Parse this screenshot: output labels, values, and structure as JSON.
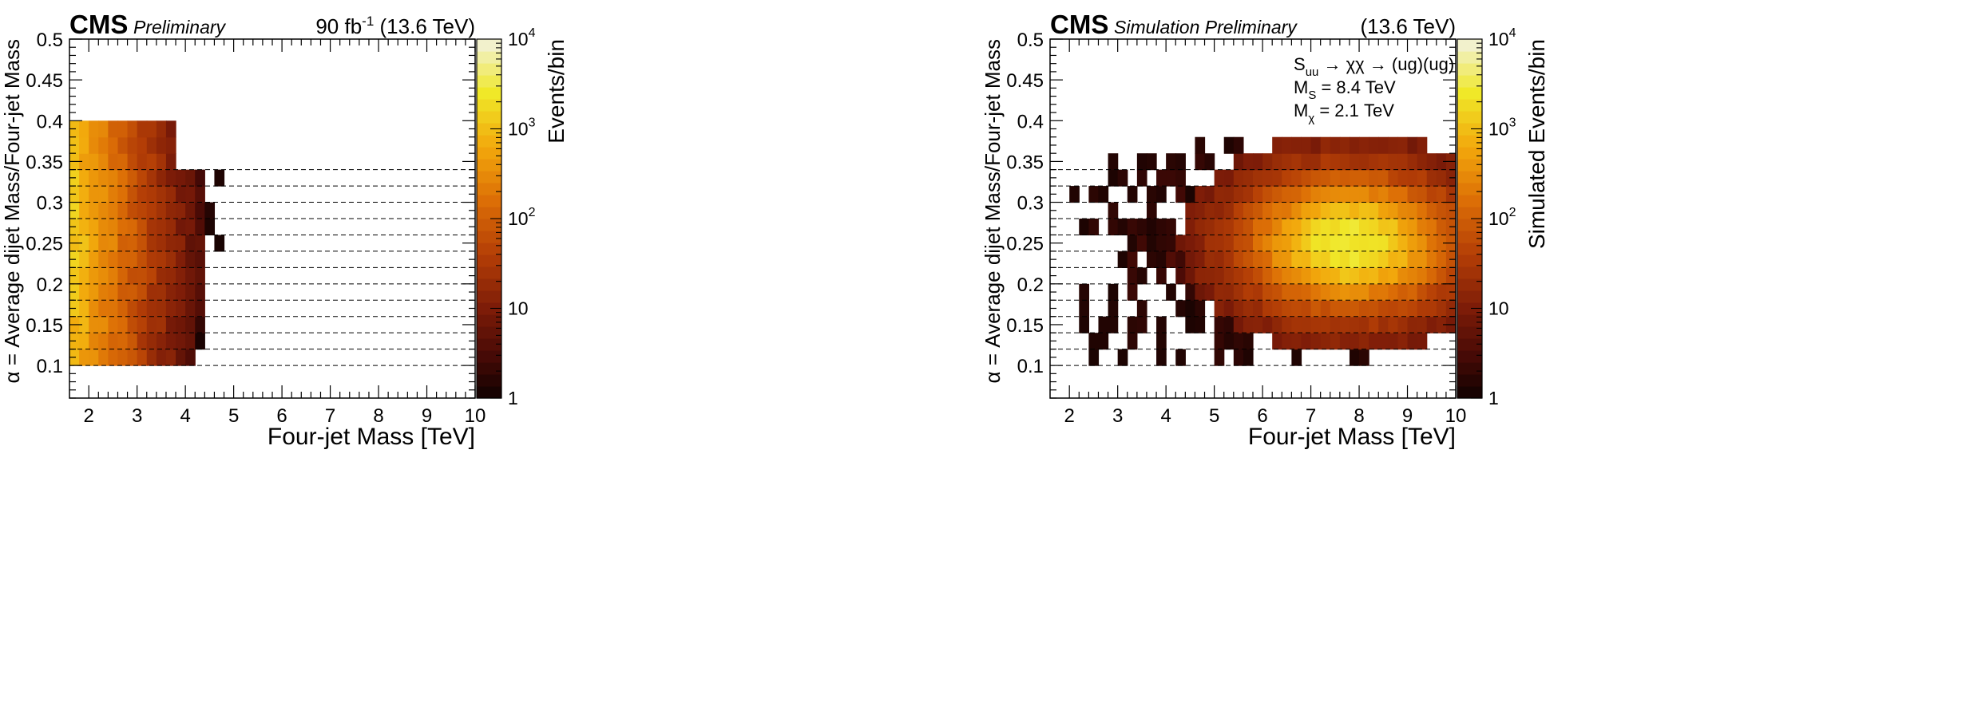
{
  "chart_data": [
    {
      "type": "heatmap",
      "experiment": "CMS",
      "label": "Preliminary",
      "lumi": "90 fb",
      "lumi_exp": "-1",
      "energy": "(13.6 TeV)",
      "xlabel": "Four-jet Mass [TeV]",
      "ylabel": "α = Average dijet Mass/Four-jet Mass",
      "zlabel": "Events/bin",
      "xlim": [
        1.6,
        10
      ],
      "ylim": [
        0.06,
        0.5
      ],
      "zlim": [
        1,
        10000
      ],
      "zscale": "log",
      "x_ticks": [
        "2",
        "3",
        "4",
        "5",
        "6",
        "7",
        "8",
        "9",
        "10"
      ],
      "y_ticks": [
        "0.1",
        "0.15",
        "0.2",
        "0.25",
        "0.3",
        "0.35",
        "0.4",
        "0.45",
        "0.5"
      ],
      "z_ticks": [
        {
          "base": "1",
          "exp": ""
        },
        {
          "base": "10",
          "exp": ""
        },
        {
          "base": "10",
          "exp": "2"
        },
        {
          "base": "10",
          "exp": "3"
        },
        {
          "base": "10",
          "exp": "4"
        }
      ],
      "alpha_bin_edges": [
        0.1,
        0.12,
        0.14,
        0.16,
        0.18,
        0.2,
        0.22,
        0.24,
        0.26,
        0.28,
        0.3,
        0.32,
        0.34
      ],
      "distribution": "falling",
      "annotations": []
    },
    {
      "type": "heatmap",
      "experiment": "CMS",
      "label": "Simulation Preliminary",
      "lumi": "",
      "lumi_exp": "",
      "energy": "(13.6 TeV)",
      "xlabel": "Four-jet Mass [TeV]",
      "ylabel": "α = Average dijet Mass/Four-jet Mass",
      "zlabel": "Simulated Events/bin",
      "xlim": [
        1.6,
        10
      ],
      "ylim": [
        0.06,
        0.5
      ],
      "zlim": [
        1,
        10000
      ],
      "zscale": "log",
      "x_ticks": [
        "2",
        "3",
        "4",
        "5",
        "6",
        "7",
        "8",
        "9",
        "10"
      ],
      "y_ticks": [
        "0.1",
        "0.15",
        "0.2",
        "0.25",
        "0.3",
        "0.35",
        "0.4",
        "0.45",
        "0.5"
      ],
      "z_ticks": [
        {
          "base": "1",
          "exp": ""
        },
        {
          "base": "10",
          "exp": ""
        },
        {
          "base": "10",
          "exp": "2"
        },
        {
          "base": "10",
          "exp": "3"
        },
        {
          "base": "10",
          "exp": "4"
        }
      ],
      "alpha_bin_edges": [
        0.1,
        0.12,
        0.14,
        0.16,
        0.18,
        0.2,
        0.22,
        0.24,
        0.26,
        0.28,
        0.3,
        0.32,
        0.34
      ],
      "distribution": "signal",
      "signal": {
        "mass_S_TeV": 8.4,
        "mass_chi_TeV": 2.1,
        "peak_alpha": 0.25
      },
      "annotations": [
        {
          "main": "S",
          "sub": "uu",
          "rest": " → χχ → (ug)(ug)"
        },
        {
          "main": "M",
          "sub": "S",
          "rest": " = 8.4 TeV"
        },
        {
          "main": "M",
          "sub": "χ",
          "rest": " = 2.1 TeV"
        }
      ]
    }
  ]
}
